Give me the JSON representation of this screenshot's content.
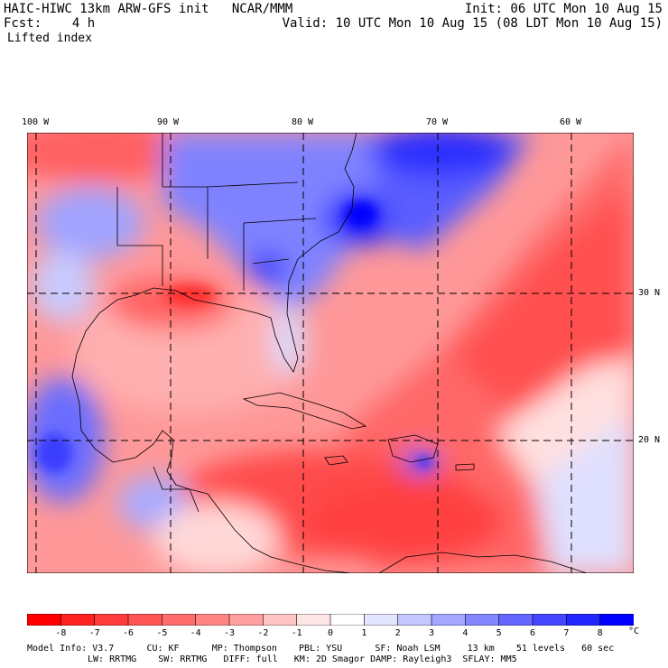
{
  "header": {
    "title": "HAIC-HIWC 13km ARW-GFS init   NCAR/MMM",
    "fcst": "Fcst:    4 h",
    "field": "Lifted index",
    "init": "Init: 06 UTC Mon 10 Aug 15",
    "valid": "Valid: 10 UTC Mon 10 Aug 15 (08 LDT Mon 10 Aug 15)"
  },
  "longitudes": [
    "100 W",
    "90 W",
    "80 W",
    "70 W",
    "60 W"
  ],
  "latitudes": [
    "30 N",
    "20 N"
  ],
  "colorbar": {
    "unit": "°C",
    "ticks": [
      "-8",
      "-7",
      "-6",
      "-5",
      "-4",
      "-3",
      "-2",
      "-1",
      "0",
      "1",
      "2",
      "3",
      "4",
      "5",
      "6",
      "7",
      "8"
    ],
    "colors": [
      "#ff0000",
      "#ff2222",
      "#ff3c3c",
      "#ff5555",
      "#ff6c6c",
      "#ff8585",
      "#ffa0a0",
      "#ffc4c4",
      "#ffe6e6",
      "#ffffff",
      "#e4e6ff",
      "#c4c6ff",
      "#a4a6ff",
      "#8486ff",
      "#6466ff",
      "#4446ff",
      "#2426ff",
      "#0000ff"
    ]
  },
  "footer": {
    "line1": "Model Info: V3.7      CU: KF      MP: Thompson    PBL: YSU      SF: Noah LSM     13 km    51 levels   60 sec",
    "line2": "LW: RRTMG    SW: RRTMG   DIFF: full   KM: 2D Smagor DAMP: Rayleigh3  SFLAY: MM5"
  }
}
